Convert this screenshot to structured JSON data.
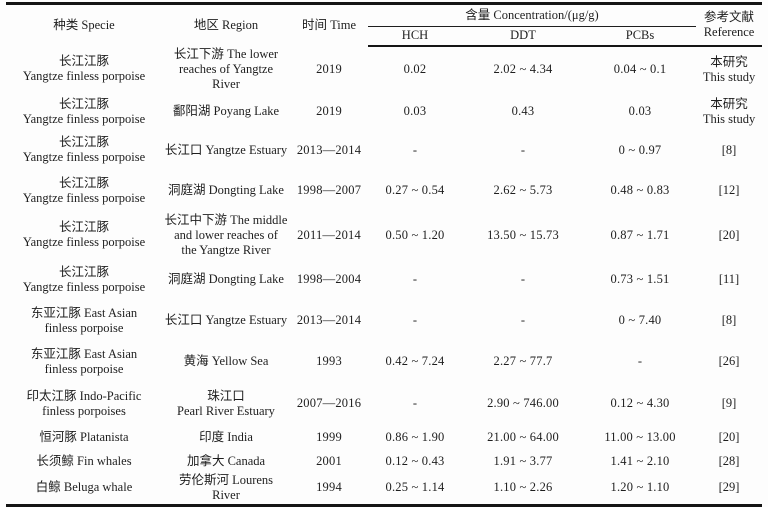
{
  "page": {
    "background": "#fdfdfd",
    "text_color": "#1e1e1e",
    "rule_color": "#151515"
  },
  "table": {
    "headers": {
      "specie": "种类 Specie",
      "region": "地区 Region",
      "time": "时间 Time",
      "concentration_group": "含量 Concentration/(μg/g)",
      "sub_columns": [
        "HCH",
        "DDT",
        "PCBs"
      ],
      "reference": "参考文献\nReference"
    },
    "rows": [
      {
        "specie": "长江江豚\nYangtze finless porpoise",
        "region": "长江下游 The lower\nreaches of Yangtze River",
        "time": "2019",
        "hch": "0.02",
        "ddt": "2.02 ~ 4.34",
        "pcbs": "0.04 ~ 0.1",
        "reference": "本研究\nThis study"
      },
      {
        "specie": "长江江豚\nYangtze finless porpoise",
        "region": "鄱阳湖 Poyang Lake",
        "time": "2019",
        "hch": "0.03",
        "ddt": "0.43",
        "pcbs": "0.03",
        "reference": "本研究\nThis study"
      },
      {
        "specie": "长江江豚\nYangtze finless porpoise",
        "region": "长江口 Yangtze Estuary",
        "time": "2013—2014",
        "hch": "-",
        "ddt": "-",
        "pcbs": "0 ~ 0.97",
        "reference": "[8]"
      },
      {
        "specie": "长江江豚\nYangtze finless porpoise",
        "region": "洞庭湖 Dongting Lake",
        "time": "1998—2007",
        "hch": "0.27 ~ 0.54",
        "ddt": "2.62 ~ 5.73",
        "pcbs": "0.48 ~ 0.83",
        "reference": "[12]"
      },
      {
        "specie": "长江江豚\nYangtze finless porpoise",
        "region": "长江中下游 The middle\nand lower reaches of\nthe Yangtze River",
        "time": "2011—2014",
        "hch": "0.50 ~ 1.20",
        "ddt": "13.50 ~ 15.73",
        "pcbs": "0.87 ~ 1.71",
        "reference": "[20]"
      },
      {
        "specie": "长江江豚\nYangtze finless porpoise",
        "region": "洞庭湖 Dongting Lake",
        "time": "1998—2004",
        "hch": "-",
        "ddt": "-",
        "pcbs": "0.73 ~ 1.51",
        "reference": "[11]"
      },
      {
        "specie": "东亚江豚 East Asian\nfinless porpoise",
        "region": "长江口 Yangtze Estuary",
        "time": "2013—2014",
        "hch": "-",
        "ddt": "-",
        "pcbs": "0 ~ 7.40",
        "reference": "[8]"
      },
      {
        "specie": "东亚江豚 East Asian\nfinless porpoise",
        "region": "黄海 Yellow Sea",
        "time": "1993",
        "hch": "0.42 ~ 7.24",
        "ddt": "2.27 ~ 77.7",
        "pcbs": "-",
        "reference": "[26]"
      },
      {
        "specie": "印太江豚 Indo-Pacific\nfinless porpoises",
        "region": "珠江口\nPearl River Estuary",
        "time": "2007—2016",
        "hch": "-",
        "ddt": "2.90 ~ 746.00",
        "pcbs": "0.12 ~ 4.30",
        "reference": "[9]"
      },
      {
        "specie": "恒河豚 Platanista",
        "region": "印度 India",
        "time": "1999",
        "hch": "0.86 ~ 1.90",
        "ddt": "21.00 ~ 64.00",
        "pcbs": "11.00 ~ 13.00",
        "reference": "[20]"
      },
      {
        "specie": "长须鲸 Fin whales",
        "region": "加拿大 Canada",
        "time": "2001",
        "hch": "0.12 ~ 0.43",
        "ddt": "1.91 ~ 3.77",
        "pcbs": "1.41 ~ 2.10",
        "reference": "[28]"
      },
      {
        "specie": "白鲸 Beluga whale",
        "region": "劳伦斯河 Lourens River",
        "time": "1994",
        "hch": "0.25 ~ 1.14",
        "ddt": "1.10 ~ 2.26",
        "pcbs": "1.20 ~ 1.10",
        "reference": "[29]"
      }
    ]
  }
}
